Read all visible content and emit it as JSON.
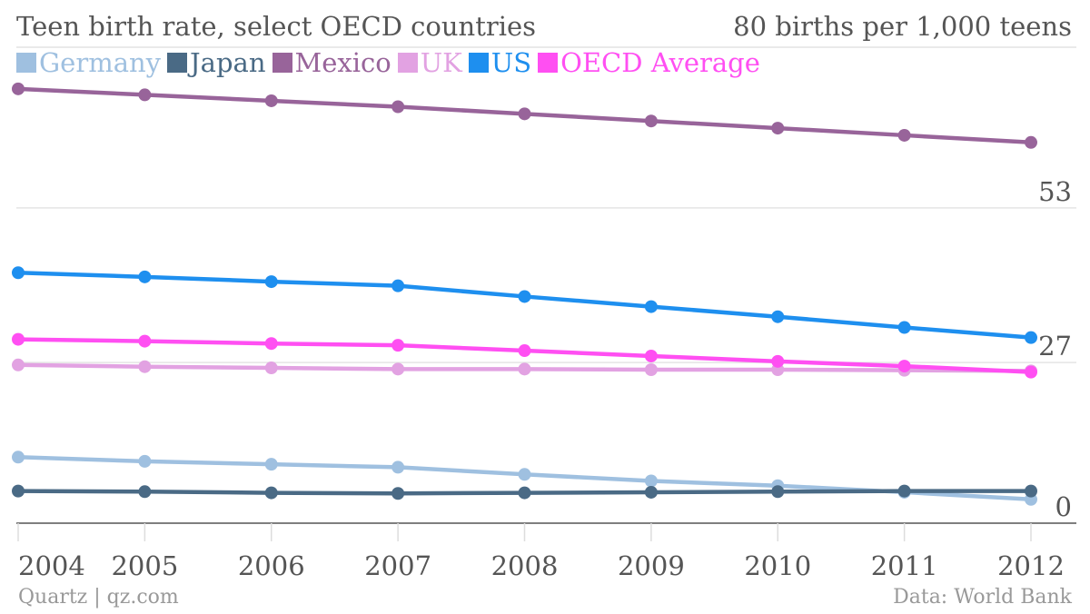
{
  "chart_data": {
    "type": "line",
    "title": "Teen birth rate, select OECD countries",
    "unit_label": "80 births per 1,000 teens",
    "source": "Quartz | qz.com",
    "credit": "Data: World Bank",
    "x": [
      "2004",
      "2005",
      "2006",
      "2007",
      "2008",
      "2009",
      "2010",
      "2011",
      "2012"
    ],
    "ylim": [
      0,
      80
    ],
    "y_ticks": [
      0,
      27,
      53,
      80
    ],
    "y_tick_labels": [
      "0",
      "27",
      "53",
      ""
    ],
    "grid": true,
    "legend_position": "top-left",
    "series": [
      {
        "name": "Germany",
        "color": "#9fc0e0",
        "values": [
          11.1,
          10.4,
          9.9,
          9.4,
          8.2,
          7.1,
          6.3,
          5.2,
          4.0
        ]
      },
      {
        "name": "Japan",
        "color": "#4a6a85",
        "values": [
          5.4,
          5.3,
          5.1,
          5.0,
          5.1,
          5.2,
          5.3,
          5.4,
          5.4
        ]
      },
      {
        "name": "Mexico",
        "color": "#98649a",
        "values": [
          73.0,
          72.0,
          71.0,
          70.0,
          68.8,
          67.6,
          66.4,
          65.2,
          64.0
        ]
      },
      {
        "name": "UK",
        "color": "#e2a2e2",
        "values": [
          26.6,
          26.3,
          26.1,
          25.9,
          25.9,
          25.8,
          25.8,
          25.7,
          25.6
        ]
      },
      {
        "name": "US",
        "color": "#1e8fef",
        "values": [
          42.1,
          41.4,
          40.6,
          39.9,
          38.1,
          36.4,
          34.7,
          32.9,
          31.2
        ]
      },
      {
        "name": "OECD Average",
        "color": "#ff4ff2",
        "values": [
          30.9,
          30.6,
          30.2,
          29.9,
          29.0,
          28.1,
          27.2,
          26.4,
          25.4
        ]
      }
    ]
  }
}
